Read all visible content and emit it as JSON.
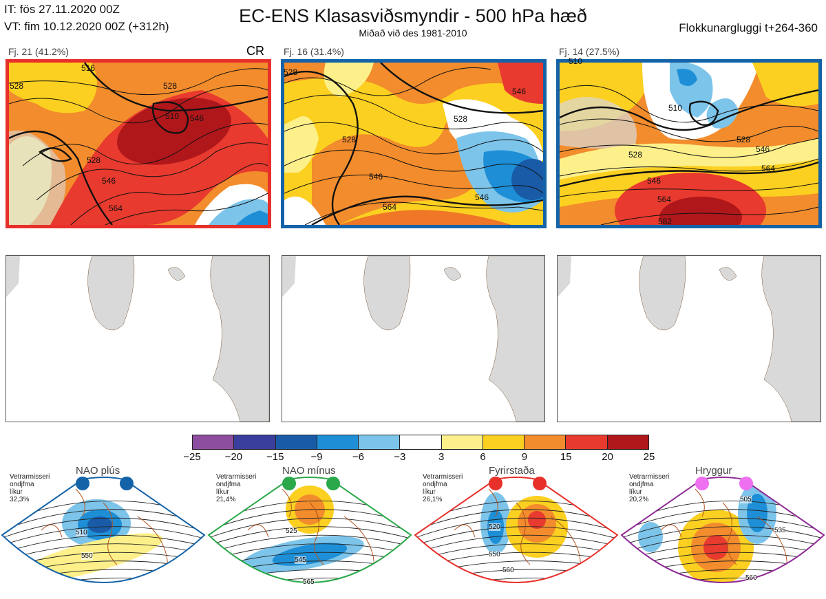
{
  "header": {
    "init_time": "IT: fös 27.11.2020 00Z",
    "valid_time": "VT: fim 10.12.2020 00Z  (+312h)",
    "title": "EC-ENS Klasasviðsmyndir - 500 hPa hæð",
    "subtitle": "Miðað við des 1981-2010",
    "cluster_window": "Flokkunargluggi t+264-360"
  },
  "clusters": [
    {
      "label": "Fj. 21 (41.2%)",
      "tag": "CR",
      "border_color": "#e8302a",
      "contour_labels": [
        "516",
        "528",
        "528",
        "528",
        "528",
        "546",
        "546",
        "564",
        "510"
      ]
    },
    {
      "label": "Fj. 16 (31.4%)",
      "tag": "",
      "border_color": "#1463a8",
      "contour_labels": [
        "528",
        "528",
        "528",
        "546",
        "546",
        "546",
        "564",
        "546"
      ]
    },
    {
      "label": "Fj. 14 (27.5%)",
      "tag": "",
      "border_color": "#1463a8",
      "contour_labels": [
        "510",
        "510",
        "528",
        "528",
        "546",
        "546",
        "564",
        "564",
        "582"
      ]
    }
  ],
  "colorbar": {
    "ticks": [
      "−25",
      "−20",
      "−15",
      "−9",
      "−6",
      "−3",
      "3",
      "6",
      "9",
      "15",
      "20",
      "25"
    ],
    "colors": [
      "#8e4ea0",
      "#3a3e9c",
      "#1a5ba8",
      "#1e8fd6",
      "#7cc4ea",
      "#ffffff",
      "#fdf08a",
      "#fcd020",
      "#f28c2c",
      "#e83a2e",
      "#b0171b"
    ]
  },
  "regimes": [
    {
      "title": "NAO plús",
      "note": [
        "Vetrarmisseri",
        "ondjfma"
      ],
      "likelihood": "líkur 32,3%",
      "color": "#1463a8",
      "dot_color": "#1463a8",
      "contour_labels": [
        "510",
        "550"
      ]
    },
    {
      "title": "NAO mínus",
      "note": [
        "Vetrarmisseri",
        "ondjfma"
      ],
      "likelihood": "líkur 21,4%",
      "color": "#2aa84a",
      "dot_color": "#2aa84a",
      "contour_labels": [
        "525",
        "545",
        "565"
      ]
    },
    {
      "title": "Fyrirstaða",
      "note": [
        "Vetrarmisseri",
        "ondjfma"
      ],
      "likelihood": "líkur 26,1%",
      "color": "#e8302a",
      "dot_color": "#e8302a",
      "contour_labels": [
        "520",
        "550",
        "560"
      ]
    },
    {
      "title": "Hryggur",
      "note": [
        "Vetrarmisseri",
        "ondjfma"
      ],
      "likelihood": "líkur 20,2%",
      "color": "#8e2a96",
      "dot_color": "#ee6ff0",
      "contour_labels": [
        "505",
        "535",
        "560"
      ]
    }
  ]
}
